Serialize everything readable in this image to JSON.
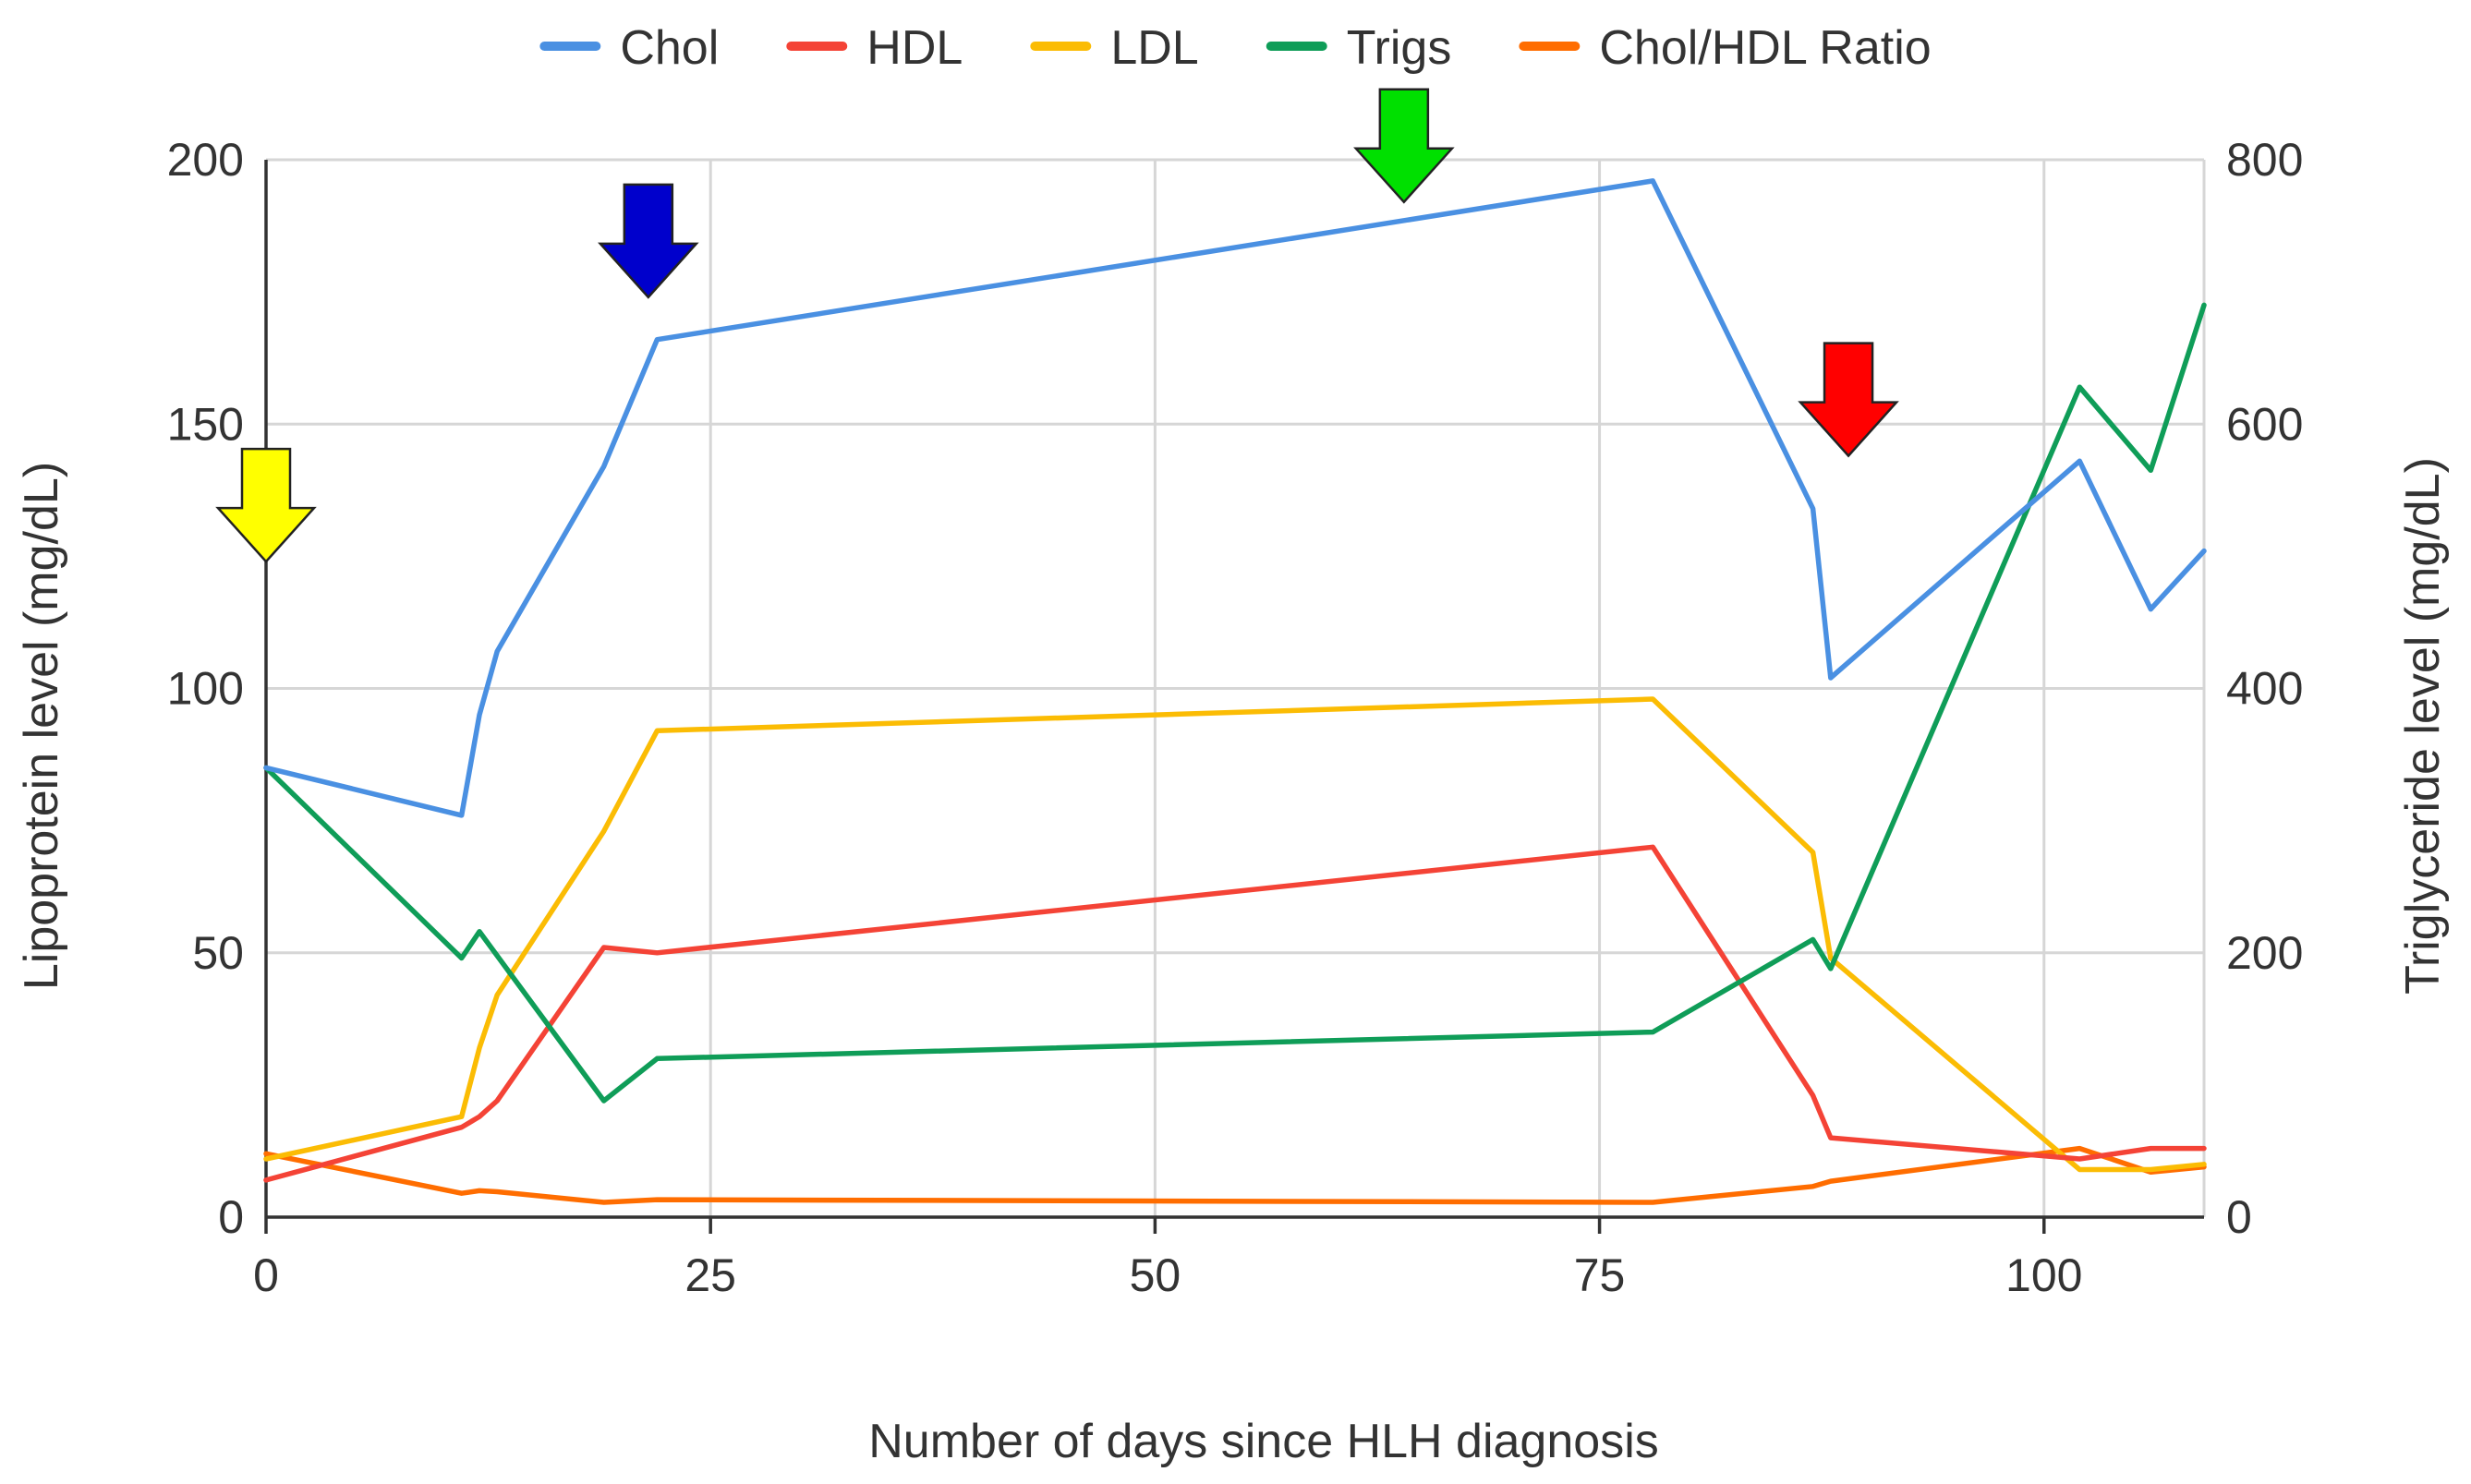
{
  "chart_data": {
    "type": "line",
    "title": "",
    "xlabel": "Number of days since HLH diagnosis",
    "ylabel": "Lipoprotein level (mg/dL)",
    "y2label": "Triglyceride level (mg/dL)",
    "xlim": [
      0,
      109
    ],
    "ylim": [
      0,
      200
    ],
    "y2lim": [
      0,
      800
    ],
    "x_ticks": [
      0,
      25,
      50,
      75,
      100
    ],
    "y_ticks": [
      0,
      50,
      100,
      150,
      200
    ],
    "y2_ticks": [
      0,
      200,
      400,
      600,
      800
    ],
    "grid": true,
    "legend_position": "top",
    "series": [
      {
        "name": "Chol",
        "color": "#4a90e2",
        "axis": "left",
        "x": [
          0,
          11,
          12,
          13,
          19,
          22,
          78,
          87,
          88,
          102,
          106,
          109
        ],
        "values": [
          85,
          76,
          95,
          107,
          142,
          166,
          196,
          134,
          102,
          143,
          115,
          126
        ]
      },
      {
        "name": "HDL",
        "color": "#f44336",
        "axis": "left",
        "x": [
          0,
          11,
          12,
          13,
          19,
          22,
          78,
          87,
          88,
          102,
          106,
          109
        ],
        "values": [
          7,
          17,
          19,
          22,
          51,
          50,
          70,
          23,
          15,
          11,
          13,
          13
        ]
      },
      {
        "name": "LDL",
        "color": "#fbbc04",
        "axis": "left",
        "x": [
          0,
          11,
          12,
          13,
          19,
          22,
          78,
          87,
          88,
          102,
          106,
          109
        ],
        "values": [
          11,
          19,
          32,
          42,
          73,
          92,
          98,
          69,
          49,
          9,
          9,
          10
        ]
      },
      {
        "name": "Trigs",
        "color": "#0f9d58",
        "axis": "right",
        "x": [
          0,
          11,
          12,
          19,
          22,
          78,
          87,
          88,
          102,
          106,
          109
        ],
        "values": [
          340,
          196,
          216,
          88,
          120,
          140,
          210,
          188,
          628,
          565,
          690
        ]
      },
      {
        "name": "Chol/HDL Ratio",
        "color": "#ff6d00",
        "axis": "left",
        "x": [
          0,
          11,
          12,
          13,
          19,
          22,
          78,
          87,
          88,
          102,
          106,
          109
        ],
        "values": [
          12,
          4.5,
          5,
          4.8,
          2.8,
          3.3,
          2.8,
          5.8,
          6.8,
          13,
          8.5,
          9.5
        ]
      }
    ],
    "annotations": [
      {
        "name": "yellow-arrow",
        "x": 0,
        "y": 124,
        "color": "#ffff00"
      },
      {
        "name": "blue-arrow",
        "x": 21.5,
        "y": 174,
        "color": "#0000cc"
      },
      {
        "name": "green-arrow",
        "x": 64,
        "y": 192,
        "color": "#00e000"
      },
      {
        "name": "red-arrow",
        "x": 89,
        "y": 144,
        "color": "#ff0000"
      }
    ]
  }
}
